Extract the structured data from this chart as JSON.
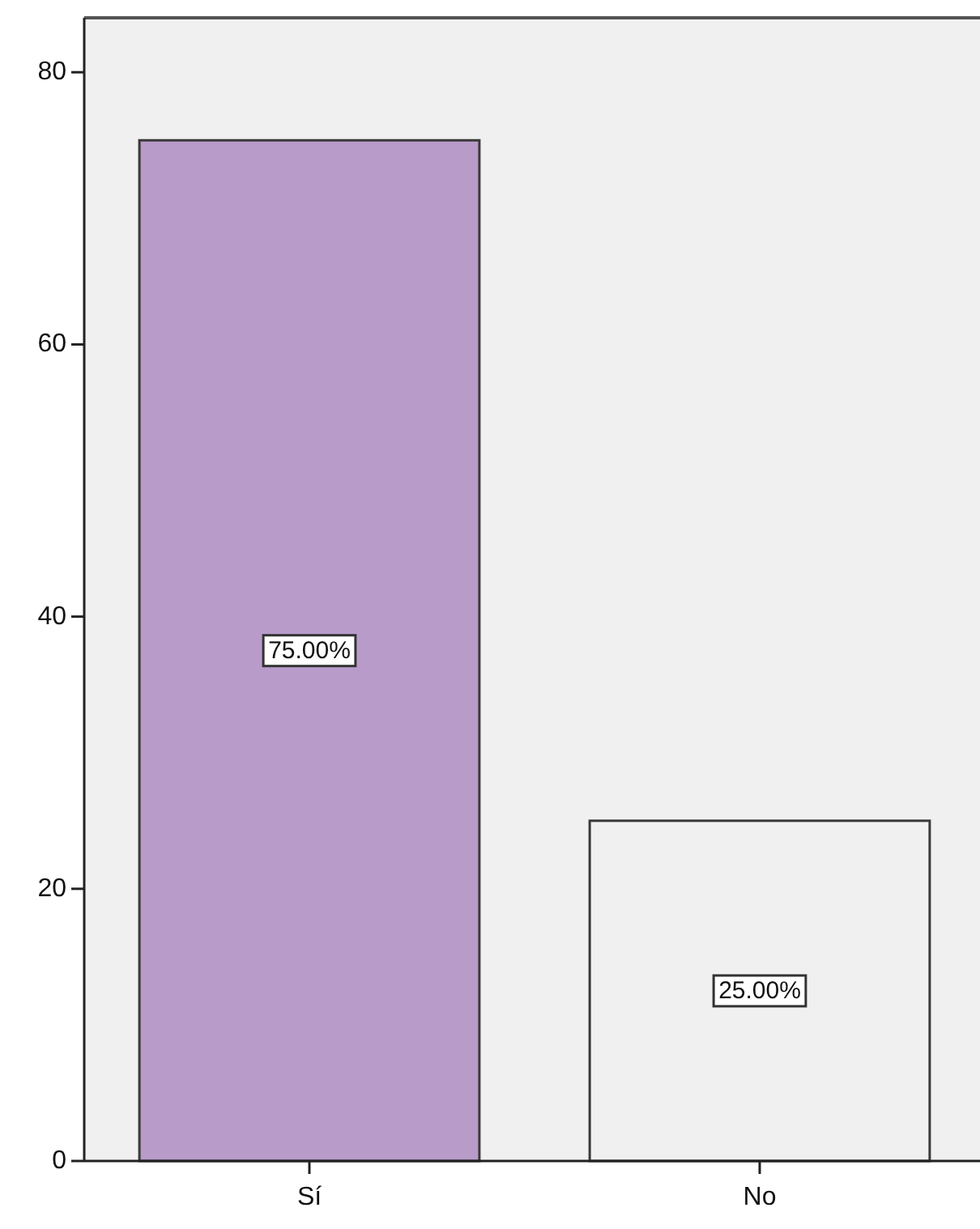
{
  "chart_data": {
    "type": "bar",
    "categories": [
      "Sí",
      "No"
    ],
    "values": [
      75,
      25
    ],
    "colors": [
      "#b89bc9",
      "#f0f0f0"
    ],
    "ylim": [
      0,
      84
    ],
    "yticks": [
      0,
      20,
      40,
      60,
      80
    ],
    "value_labels": [
      "75.00%",
      "25.00%"
    ]
  }
}
